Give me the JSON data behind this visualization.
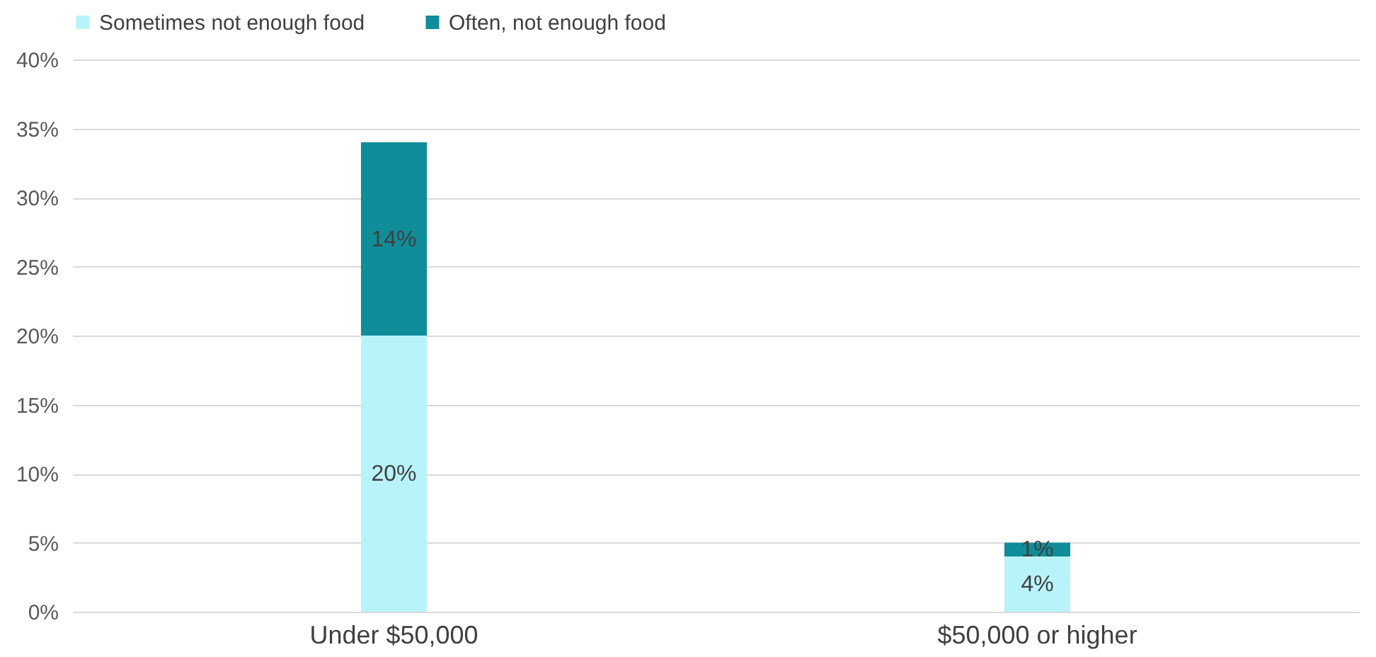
{
  "chart_data": {
    "type": "bar",
    "stacked": true,
    "categories": [
      "Under $50,000",
      "$50,000 or higher"
    ],
    "series": [
      {
        "name": "Sometimes not enough food",
        "color": "#b8f3fa",
        "values": [
          20,
          4
        ],
        "value_labels": [
          "20%",
          "4%"
        ]
      },
      {
        "name": "Often, not enough food",
        "color": "#0f8d99",
        "values": [
          14,
          1
        ],
        "value_labels": [
          "14%",
          "1%"
        ]
      }
    ],
    "ylim": [
      0,
      40
    ],
    "yticks": [
      {
        "value": 0,
        "label": "0%"
      },
      {
        "value": 5,
        "label": "5%"
      },
      {
        "value": 10,
        "label": "10%"
      },
      {
        "value": 15,
        "label": "15%"
      },
      {
        "value": 20,
        "label": "20%"
      },
      {
        "value": 25,
        "label": "25%"
      },
      {
        "value": 30,
        "label": "30%"
      },
      {
        "value": 35,
        "label": "35%"
      },
      {
        "value": 40,
        "label": "40%"
      }
    ],
    "grid": "y",
    "legend": "top"
  }
}
